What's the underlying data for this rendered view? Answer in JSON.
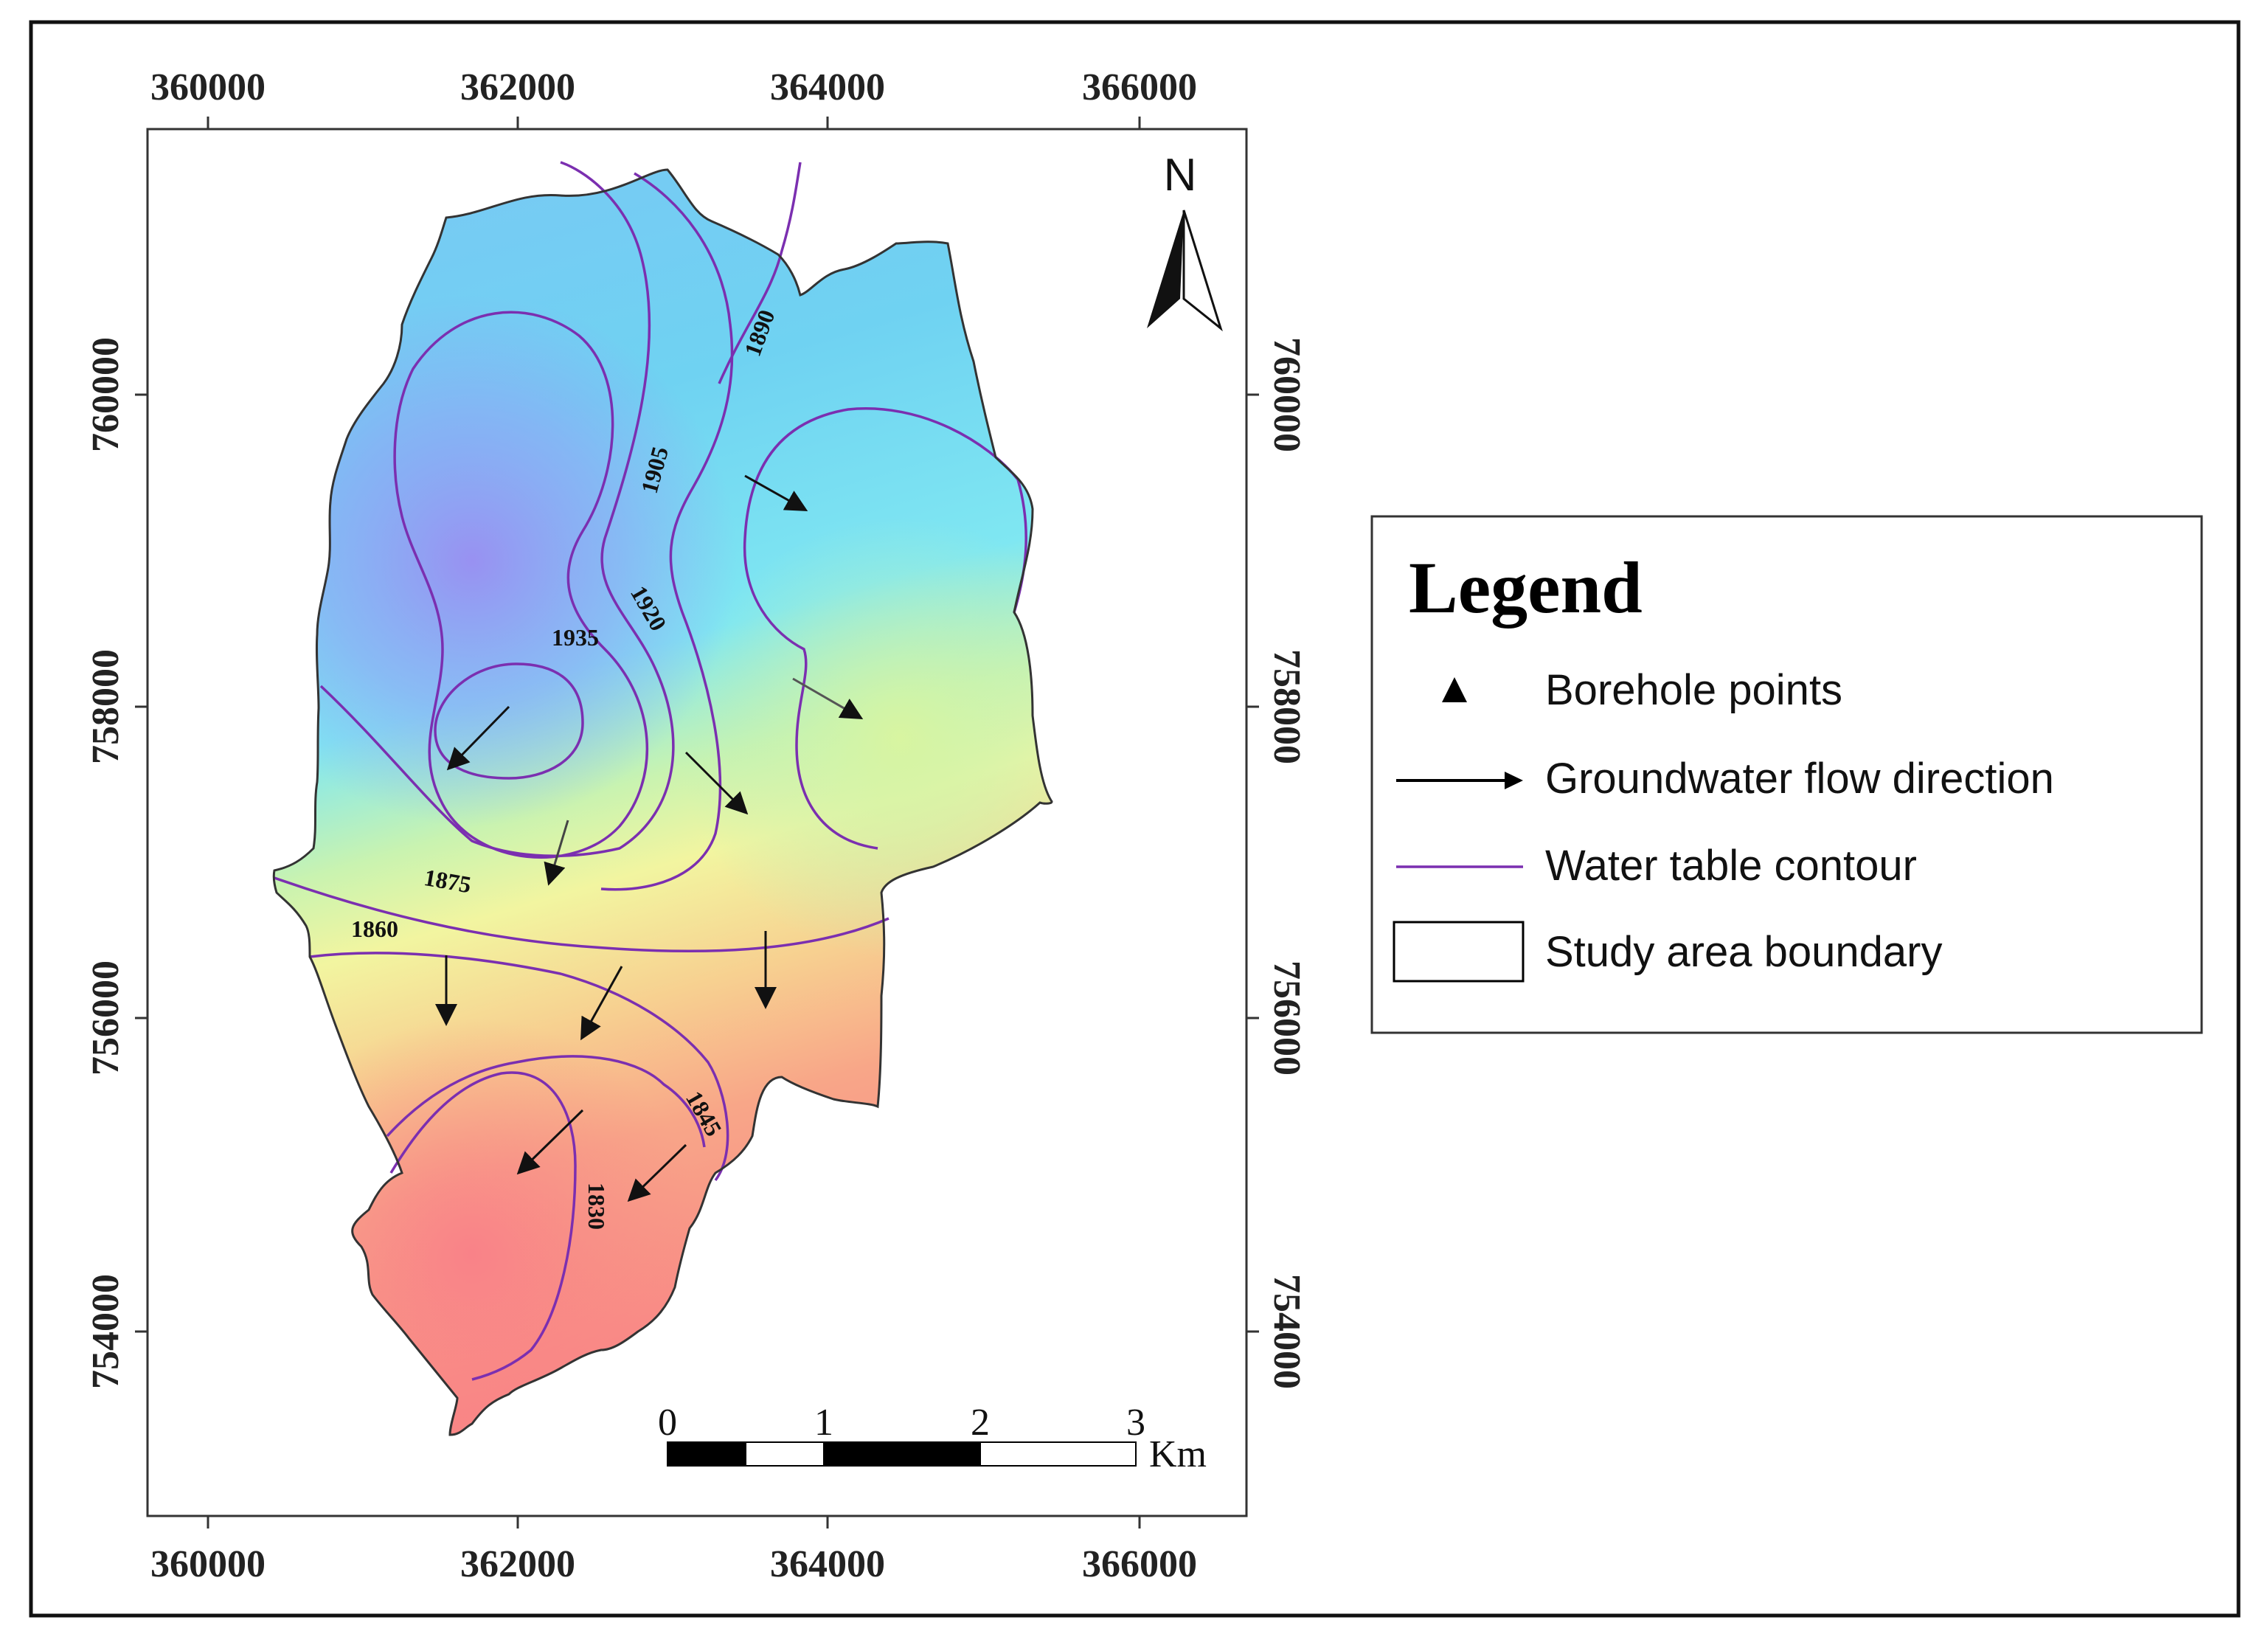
{
  "map": {
    "x_ticks": [
      "360000",
      "362000",
      "364000",
      "366000"
    ],
    "y_ticks": [
      "760000",
      "758000",
      "756000",
      "754000"
    ],
    "contours": [
      {
        "value": "1935",
        "label": "1935"
      },
      {
        "value": "1920",
        "label": "1920"
      },
      {
        "value": "1905",
        "label": "1905"
      },
      {
        "value": "1890",
        "label": "1890"
      },
      {
        "value": "1875",
        "label": "1875"
      },
      {
        "value": "1860",
        "label": "1860"
      },
      {
        "value": "1845",
        "label": "1845"
      },
      {
        "value": "1830",
        "label": "1830"
      }
    ],
    "north_arrow": {
      "label": "N",
      "icon": "north-arrow-icon"
    },
    "scale_bar": {
      "labels": [
        "0",
        "1",
        "2",
        "3"
      ],
      "unit": "Km"
    },
    "colors": {
      "contour": "#7b2fb0",
      "surface_high": "#8fa6f5",
      "surface_mid": "#7fe7f2",
      "surface_low": "#f2f5a0",
      "surface_lowest": "#f98b8b",
      "boundary": "#333333"
    }
  },
  "legend": {
    "title": "Legend",
    "items": [
      {
        "label": "Borehole points",
        "icon": "borehole-triangle-icon"
      },
      {
        "label": "Groundwater flow direction",
        "icon": "flow-arrow-icon"
      },
      {
        "label": "Water table contour",
        "icon": "contour-line-icon"
      },
      {
        "label": "Study area boundary",
        "icon": "boundary-box-icon"
      }
    ]
  }
}
